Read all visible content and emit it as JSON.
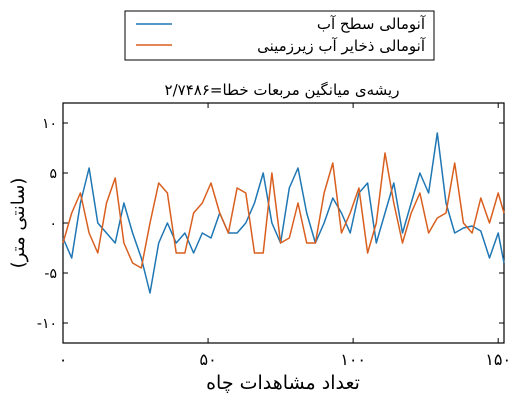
{
  "chart_data": {
    "type": "line",
    "title": "ریشه‌ی میانگین مربعات خطا=۲/۷۴۸۶",
    "xlabel": "تعداد مشاهدات چاه",
    "ylabel": "(سانتی متر)",
    "xlim": [
      0,
      152
    ],
    "ylim": [
      -12,
      12
    ],
    "xticks": [
      0,
      50,
      100,
      150
    ],
    "xtick_labels": [
      "۰",
      "۵۰",
      "۱۰۰",
      "۱۵۰"
    ],
    "yticks": [
      10,
      5,
      0,
      -5,
      -10
    ],
    "ytick_labels": [
      "۱۰",
      "۵",
      "۰",
      "-۵",
      "-۱۰"
    ],
    "grid": false,
    "legend_position": "top-center",
    "series": [
      {
        "name": "آنومالی سطح آب",
        "color": "#1f77b4",
        "x": [
          0,
          3,
          6,
          9,
          12,
          15,
          18,
          21,
          24,
          27,
          30,
          33,
          36,
          39,
          42,
          45,
          48,
          51,
          54,
          57,
          60,
          63,
          66,
          69,
          72,
          75,
          78,
          81,
          84,
          87,
          90,
          93,
          96,
          99,
          102,
          105,
          108,
          111,
          114,
          117,
          120,
          123,
          126,
          129,
          132,
          135,
          138,
          141,
          144,
          147,
          150,
          152
        ],
        "values": [
          -1.5,
          -3.5,
          2,
          5.5,
          0,
          -1,
          -2,
          2,
          -1,
          -3.5,
          -7,
          -2,
          0,
          -2,
          -1,
          -3,
          -1,
          -1.5,
          1,
          -1,
          -1,
          0,
          2,
          5,
          0,
          -2,
          3.5,
          5.5,
          1,
          -2,
          0,
          2.5,
          1,
          -1,
          3,
          4,
          -2,
          1,
          4,
          -1,
          2,
          5,
          3,
          9,
          2,
          -1,
          -0.5,
          -0.3,
          -0.8,
          -3.5,
          -1,
          -4
        ]
      },
      {
        "name": "آنومالی ذخایر آب زیرزمینی",
        "color": "#d95f1f",
        "x": [
          0,
          3,
          6,
          9,
          12,
          15,
          18,
          21,
          24,
          27,
          30,
          33,
          36,
          39,
          42,
          45,
          48,
          51,
          54,
          57,
          60,
          63,
          66,
          69,
          72,
          75,
          78,
          81,
          84,
          87,
          90,
          93,
          96,
          99,
          102,
          105,
          108,
          111,
          114,
          117,
          120,
          123,
          126,
          129,
          132,
          135,
          138,
          141,
          144,
          147,
          150,
          152
        ],
        "values": [
          -2,
          1,
          3,
          -1,
          -3,
          2,
          4.5,
          -2,
          -4,
          -4.5,
          0,
          4,
          3,
          -3,
          -3,
          1,
          2,
          4,
          1,
          -1,
          3.5,
          3,
          -3,
          -3,
          5,
          -2,
          -1.5,
          2,
          -2,
          -2,
          3,
          6,
          -1,
          1,
          3.5,
          -3,
          0,
          7,
          2,
          -2,
          1,
          3,
          -1,
          0.5,
          1,
          6,
          0,
          -1,
          2.5,
          0,
          3,
          1
        ]
      }
    ]
  }
}
